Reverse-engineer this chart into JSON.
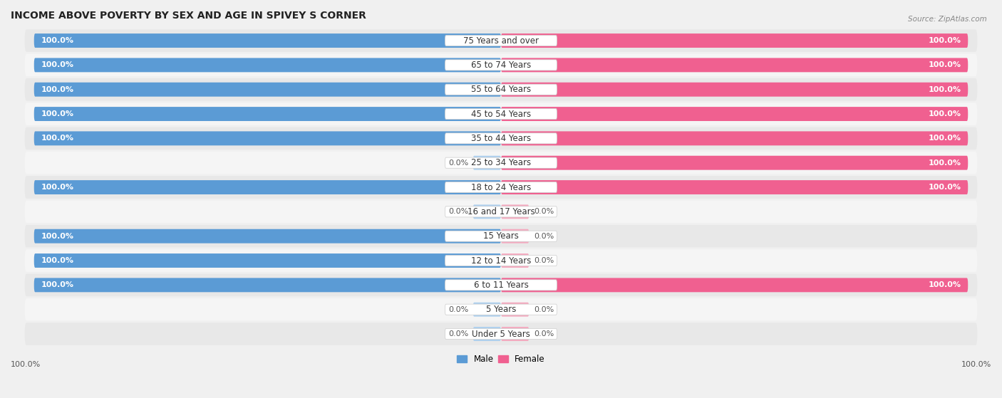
{
  "title": "INCOME ABOVE POVERTY BY SEX AND AGE IN SPIVEY S CORNER",
  "source": "Source: ZipAtlas.com",
  "categories": [
    "Under 5 Years",
    "5 Years",
    "6 to 11 Years",
    "12 to 14 Years",
    "15 Years",
    "16 and 17 Years",
    "18 to 24 Years",
    "25 to 34 Years",
    "35 to 44 Years",
    "45 to 54 Years",
    "55 to 64 Years",
    "65 to 74 Years",
    "75 Years and over"
  ],
  "male_values": [
    0.0,
    0.0,
    100.0,
    100.0,
    100.0,
    0.0,
    100.0,
    0.0,
    100.0,
    100.0,
    100.0,
    100.0,
    100.0
  ],
  "female_values": [
    0.0,
    0.0,
    100.0,
    0.0,
    0.0,
    0.0,
    100.0,
    100.0,
    100.0,
    100.0,
    100.0,
    100.0,
    100.0
  ],
  "male_color_full": "#5B9BD5",
  "male_color_zero": "#AED0EE",
  "female_color_full": "#F06090",
  "female_color_zero": "#F4AABF",
  "male_label": "Male",
  "female_label": "Female",
  "bg_color": "#F0F0F0",
  "row_bg_color": "#E8E8E8",
  "row_bg_alt": "#F5F5F5",
  "max_value": 100.0,
  "zero_stub": 6.0,
  "title_fontsize": 10,
  "label_fontsize": 8.5,
  "value_fontsize": 8.0
}
